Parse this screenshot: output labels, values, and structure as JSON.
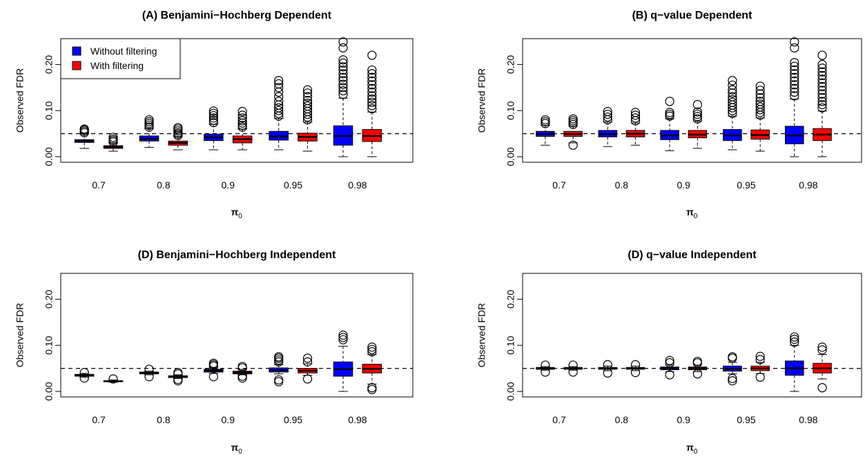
{
  "colors": {
    "without": "#0000ff",
    "with": "#ff0000",
    "outlier": "#000000"
  },
  "chart_data": [
    {
      "type": "boxplot",
      "title": "(A) Benjamini−Hochberg Dependent",
      "xlabel": "π",
      "xlabel_sub": "0",
      "ylabel": "Observed FDR",
      "ylim": [
        0,
        0.25
      ],
      "yticks": [
        "0.00",
        "0.10",
        "0.20"
      ],
      "reference_line": 0.05,
      "legend": {
        "position": "top-left",
        "entries": [
          "Without filtering",
          "With filtering"
        ]
      },
      "categories": [
        "0.7",
        "0.8",
        "0.9",
        "0.95",
        "0.98"
      ],
      "series": [
        {
          "name": "Without filtering",
          "color_key": "without",
          "boxes": [
            {
              "lo": 0.018,
              "q1": 0.031,
              "med": 0.034,
              "q3": 0.037,
              "hi": 0.05,
              "out": [
                0.052,
                0.055,
                0.058,
                0.06
              ]
            },
            {
              "lo": 0.02,
              "q1": 0.034,
              "med": 0.039,
              "q3": 0.045,
              "hi": 0.061,
              "out": [
                0.064,
                0.068,
                0.072,
                0.076,
                0.08
              ]
            },
            {
              "lo": 0.015,
              "q1": 0.035,
              "med": 0.042,
              "q3": 0.049,
              "hi": 0.07,
              "out": [
                0.074,
                0.079,
                0.084,
                0.089,
                0.094,
                0.099
              ]
            },
            {
              "lo": 0.015,
              "q1": 0.036,
              "med": 0.044,
              "q3": 0.055,
              "hi": 0.083,
              "out": [
                0.088,
                0.094,
                0.1,
                0.106,
                0.112,
                0.12,
                0.13,
                0.14,
                0.15,
                0.158,
                0.165
              ]
            },
            {
              "lo": 0.0,
              "q1": 0.025,
              "med": 0.045,
              "q3": 0.067,
              "hi": 0.127,
              "out": [
                0.135,
                0.143,
                0.15,
                0.157,
                0.165,
                0.172,
                0.18,
                0.188,
                0.195,
                0.203,
                0.21,
                0.236,
                0.249
              ]
            }
          ]
        },
        {
          "name": "With filtering",
          "color_key": "with",
          "boxes": [
            {
              "lo": 0.012,
              "q1": 0.018,
              "med": 0.021,
              "q3": 0.024,
              "hi": 0.03,
              "out": [
                0.032,
                0.035,
                0.038,
                0.042
              ]
            },
            {
              "lo": 0.015,
              "q1": 0.025,
              "med": 0.03,
              "q3": 0.034,
              "hi": 0.044,
              "out": [
                0.046,
                0.049,
                0.052,
                0.056,
                0.06,
                0.063
              ]
            },
            {
              "lo": 0.015,
              "q1": 0.03,
              "med": 0.038,
              "q3": 0.045,
              "hi": 0.06,
              "out": [
                0.064,
                0.068,
                0.073,
                0.078,
                0.084,
                0.09,
                0.098
              ]
            },
            {
              "lo": 0.012,
              "q1": 0.034,
              "med": 0.043,
              "q3": 0.051,
              "hi": 0.075,
              "out": [
                0.08,
                0.086,
                0.092,
                0.098,
                0.104,
                0.11,
                0.116,
                0.122,
                0.13,
                0.138,
                0.145
              ]
            },
            {
              "lo": 0.0,
              "q1": 0.033,
              "med": 0.045,
              "q3": 0.059,
              "hi": 0.097,
              "out": [
                0.104,
                0.111,
                0.118,
                0.125,
                0.132,
                0.14,
                0.148,
                0.156,
                0.164,
                0.172,
                0.18,
                0.188,
                0.22
              ]
            }
          ]
        }
      ]
    },
    {
      "type": "boxplot",
      "title": "(B) q−value Dependent",
      "xlabel": "π",
      "xlabel_sub": "0",
      "ylabel": "Observed FDR",
      "ylim": [
        0,
        0.25
      ],
      "yticks": [
        "0.00",
        "0.10",
        "0.20"
      ],
      "reference_line": 0.05,
      "categories": [
        "0.7",
        "0.8",
        "0.9",
        "0.95",
        "0.98"
      ],
      "series": [
        {
          "name": "Without filtering",
          "color_key": "without",
          "boxes": [
            {
              "lo": 0.025,
              "q1": 0.044,
              "med": 0.049,
              "q3": 0.055,
              "hi": 0.068,
              "out": [
                0.072,
                0.076,
                0.08
              ]
            },
            {
              "lo": 0.022,
              "q1": 0.043,
              "med": 0.049,
              "q3": 0.057,
              "hi": 0.075,
              "out": [
                0.08,
                0.086,
                0.092,
                0.098
              ]
            },
            {
              "lo": 0.013,
              "q1": 0.037,
              "med": 0.046,
              "q3": 0.057,
              "hi": 0.082,
              "out": [
                0.088,
                0.092,
                0.096,
                0.12
              ]
            },
            {
              "lo": 0.015,
              "q1": 0.035,
              "med": 0.046,
              "q3": 0.059,
              "hi": 0.088,
              "out": [
                0.094,
                0.1,
                0.106,
                0.112,
                0.118,
                0.124,
                0.13,
                0.138,
                0.145,
                0.155,
                0.165
              ]
            },
            {
              "lo": 0.0,
              "q1": 0.028,
              "med": 0.046,
              "q3": 0.066,
              "hi": 0.125,
              "out": [
                0.132,
                0.14,
                0.148,
                0.156,
                0.164,
                0.172,
                0.18,
                0.188,
                0.196,
                0.204,
                0.236,
                0.249
              ]
            }
          ]
        },
        {
          "name": "With filtering",
          "color_key": "with",
          "boxes": [
            {
              "lo": 0.03,
              "q1": 0.044,
              "med": 0.049,
              "q3": 0.055,
              "hi": 0.066,
              "out": [
                0.025,
                0.07,
                0.074,
                0.078,
                0.082
              ]
            },
            {
              "lo": 0.025,
              "q1": 0.043,
              "med": 0.05,
              "q3": 0.057,
              "hi": 0.073,
              "out": [
                0.078,
                0.084,
                0.09,
                0.096
              ]
            },
            {
              "lo": 0.018,
              "q1": 0.041,
              "med": 0.048,
              "q3": 0.057,
              "hi": 0.077,
              "out": [
                0.082,
                0.087,
                0.092,
                0.097,
                0.113
              ]
            },
            {
              "lo": 0.012,
              "q1": 0.038,
              "med": 0.047,
              "q3": 0.058,
              "hi": 0.084,
              "out": [
                0.09,
                0.096,
                0.102,
                0.108,
                0.114,
                0.12,
                0.128,
                0.136,
                0.144,
                0.153
              ]
            },
            {
              "lo": 0.0,
              "q1": 0.035,
              "med": 0.048,
              "q3": 0.061,
              "hi": 0.099,
              "out": [
                0.106,
                0.113,
                0.12,
                0.128,
                0.136,
                0.144,
                0.152,
                0.16,
                0.168,
                0.176,
                0.184,
                0.192,
                0.2,
                0.22
              ]
            }
          ]
        }
      ]
    },
    {
      "type": "boxplot",
      "title": "(D) Benjamini−Hochberg Independent",
      "xlabel": "π",
      "xlabel_sub": "0",
      "ylabel": "Observed FDR",
      "ylim": [
        0,
        0.25
      ],
      "yticks": [
        "0.00",
        "0.10",
        "0.20"
      ],
      "reference_line": 0.05,
      "categories": [
        "0.7",
        "0.8",
        "0.9",
        "0.95",
        "0.98"
      ],
      "series": [
        {
          "name": "Without filtering",
          "color_key": "without",
          "boxes": [
            {
              "lo": 0.031,
              "q1": 0.033,
              "med": 0.035,
              "q3": 0.037,
              "hi": 0.039,
              "out": [
                0.029,
                0.041
              ]
            },
            {
              "lo": 0.036,
              "q1": 0.038,
              "med": 0.04,
              "q3": 0.042,
              "hi": 0.044,
              "out": [
                0.032,
                0.048
              ]
            },
            {
              "lo": 0.039,
              "q1": 0.042,
              "med": 0.045,
              "q3": 0.048,
              "hi": 0.051,
              "out": [
                0.032,
                0.055,
                0.058,
                0.061
              ]
            },
            {
              "lo": 0.038,
              "q1": 0.042,
              "med": 0.046,
              "q3": 0.051,
              "hi": 0.058,
              "out": [
                0.021,
                0.025,
                0.064,
                0.068,
                0.072,
                0.075
              ]
            },
            {
              "lo": 0.0,
              "q1": 0.033,
              "med": 0.048,
              "q3": 0.064,
              "hi": 0.098,
              "out": [
                0.112,
                0.117,
                0.122
              ]
            }
          ]
        },
        {
          "name": "With filtering",
          "color_key": "with",
          "boxes": [
            {
              "lo": 0.02,
              "q1": 0.021,
              "med": 0.022,
              "q3": 0.023,
              "hi": 0.025,
              "out": [
                0.027
              ]
            },
            {
              "lo": 0.028,
              "q1": 0.03,
              "med": 0.032,
              "q3": 0.034,
              "hi": 0.036,
              "out": [
                0.023,
                0.026,
                0.038,
                0.041
              ]
            },
            {
              "lo": 0.036,
              "q1": 0.038,
              "med": 0.041,
              "q3": 0.044,
              "hi": 0.048,
              "out": [
                0.029,
                0.033,
                0.051,
                0.054
              ]
            },
            {
              "lo": 0.035,
              "q1": 0.04,
              "med": 0.045,
              "q3": 0.05,
              "hi": 0.06,
              "out": [
                0.027,
                0.064,
                0.072
              ]
            },
            {
              "lo": 0.016,
              "q1": 0.04,
              "med": 0.049,
              "q3": 0.059,
              "hi": 0.08,
              "out": [
                0.004,
                0.008,
                0.086,
                0.091,
                0.096
              ]
            }
          ]
        }
      ]
    },
    {
      "type": "boxplot",
      "title": "(D) q−value Independent",
      "xlabel": "π",
      "xlabel_sub": "0",
      "ylabel": "Observed FDR",
      "ylim": [
        0,
        0.25
      ],
      "yticks": [
        "0.00",
        "0.10",
        "0.20"
      ],
      "reference_line": 0.05,
      "categories": [
        "0.7",
        "0.8",
        "0.9",
        "0.95",
        "0.98"
      ],
      "series": [
        {
          "name": "Without filtering",
          "color_key": "without",
          "boxes": [
            {
              "lo": 0.046,
              "q1": 0.048,
              "med": 0.05,
              "q3": 0.052,
              "hi": 0.054,
              "out": [
                0.042,
                0.057
              ]
            },
            {
              "lo": 0.045,
              "q1": 0.048,
              "med": 0.05,
              "q3": 0.052,
              "hi": 0.055,
              "out": [
                0.04,
                0.058
              ]
            },
            {
              "lo": 0.043,
              "q1": 0.047,
              "med": 0.05,
              "q3": 0.053,
              "hi": 0.057,
              "out": [
                0.036,
                0.062,
                0.067
              ]
            },
            {
              "lo": 0.038,
              "q1": 0.044,
              "med": 0.049,
              "q3": 0.055,
              "hi": 0.063,
              "out": [
                0.023,
                0.028,
                0.072,
                0.075
              ]
            },
            {
              "lo": 0.0,
              "q1": 0.035,
              "med": 0.05,
              "q3": 0.066,
              "hi": 0.1,
              "out": [
                0.107,
                0.113,
                0.118
              ]
            }
          ]
        },
        {
          "name": "With filtering",
          "color_key": "with",
          "boxes": [
            {
              "lo": 0.046,
              "q1": 0.048,
              "med": 0.05,
              "q3": 0.052,
              "hi": 0.054,
              "out": [
                0.042,
                0.057
              ]
            },
            {
              "lo": 0.045,
              "q1": 0.048,
              "med": 0.05,
              "q3": 0.052,
              "hi": 0.055,
              "out": [
                0.041,
                0.058
              ]
            },
            {
              "lo": 0.043,
              "q1": 0.047,
              "med": 0.05,
              "q3": 0.053,
              "hi": 0.057,
              "out": [
                0.038,
                0.062,
                0.065
              ]
            },
            {
              "lo": 0.039,
              "q1": 0.045,
              "med": 0.05,
              "q3": 0.055,
              "hi": 0.063,
              "out": [
                0.031,
                0.069,
                0.076
              ]
            },
            {
              "lo": 0.027,
              "q1": 0.04,
              "med": 0.05,
              "q3": 0.061,
              "hi": 0.08,
              "out": [
                0.008,
                0.09,
                0.096
              ]
            }
          ]
        }
      ]
    }
  ]
}
